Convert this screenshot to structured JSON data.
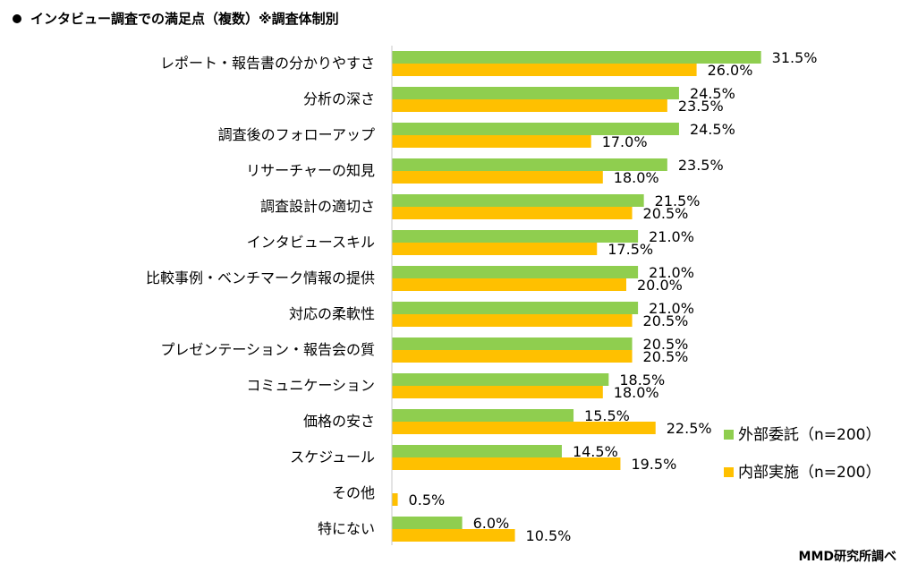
{
  "title": "インタビュー調査での満足点（複数）※調査体制別",
  "credit": "MMD研究所調べ",
  "colors": {
    "external": "#8fce4f",
    "internal": "#ffc000",
    "axis": "#c8c8c8"
  },
  "chart_data": {
    "type": "bar",
    "orientation": "horizontal",
    "title": "インタビュー調査での満足点（複数）※調査体制別",
    "categories": [
      "レポート・報告書の分かりやすさ",
      "分析の深さ",
      "調査後のフォローアップ",
      "リサーチャーの知見",
      "調査設計の適切さ",
      "インタビュースキル",
      "比較事例・ベンチマーク情報の提供",
      "対応の柔軟性",
      "プレゼンテーション・報告会の質",
      "コミュニケーション",
      "価格の安さ",
      "スケジュール",
      "その他",
      "特にない"
    ],
    "series": [
      {
        "name": "外部委託（n=200）",
        "color": "#8fce4f",
        "values": [
          31.5,
          24.5,
          24.5,
          23.5,
          21.5,
          21.0,
          21.0,
          21.0,
          20.5,
          18.5,
          15.5,
          14.5,
          0.0,
          6.0
        ],
        "labels": [
          "31.5%",
          "24.5%",
          "24.5%",
          "23.5%",
          "21.5%",
          "21.0%",
          "21.0%",
          "21.0%",
          "20.5%",
          "18.5%",
          "15.5%",
          "14.5%",
          "",
          "6.0%"
        ]
      },
      {
        "name": "内部実施（n=200）",
        "color": "#ffc000",
        "values": [
          26.0,
          23.5,
          17.0,
          18.0,
          20.5,
          17.5,
          20.0,
          20.5,
          20.5,
          18.0,
          22.5,
          19.5,
          0.5,
          10.5
        ],
        "labels": [
          "26.0%",
          "23.5%",
          "17.0%",
          "18.0%",
          "20.5%",
          "17.5%",
          "20.0%",
          "20.5%",
          "20.5%",
          "18.0%",
          "22.5%",
          "19.5%",
          "0.5%",
          "10.5%"
        ]
      }
    ],
    "xlim": [
      0,
      32
    ],
    "grid": false,
    "legend_position": "right"
  }
}
